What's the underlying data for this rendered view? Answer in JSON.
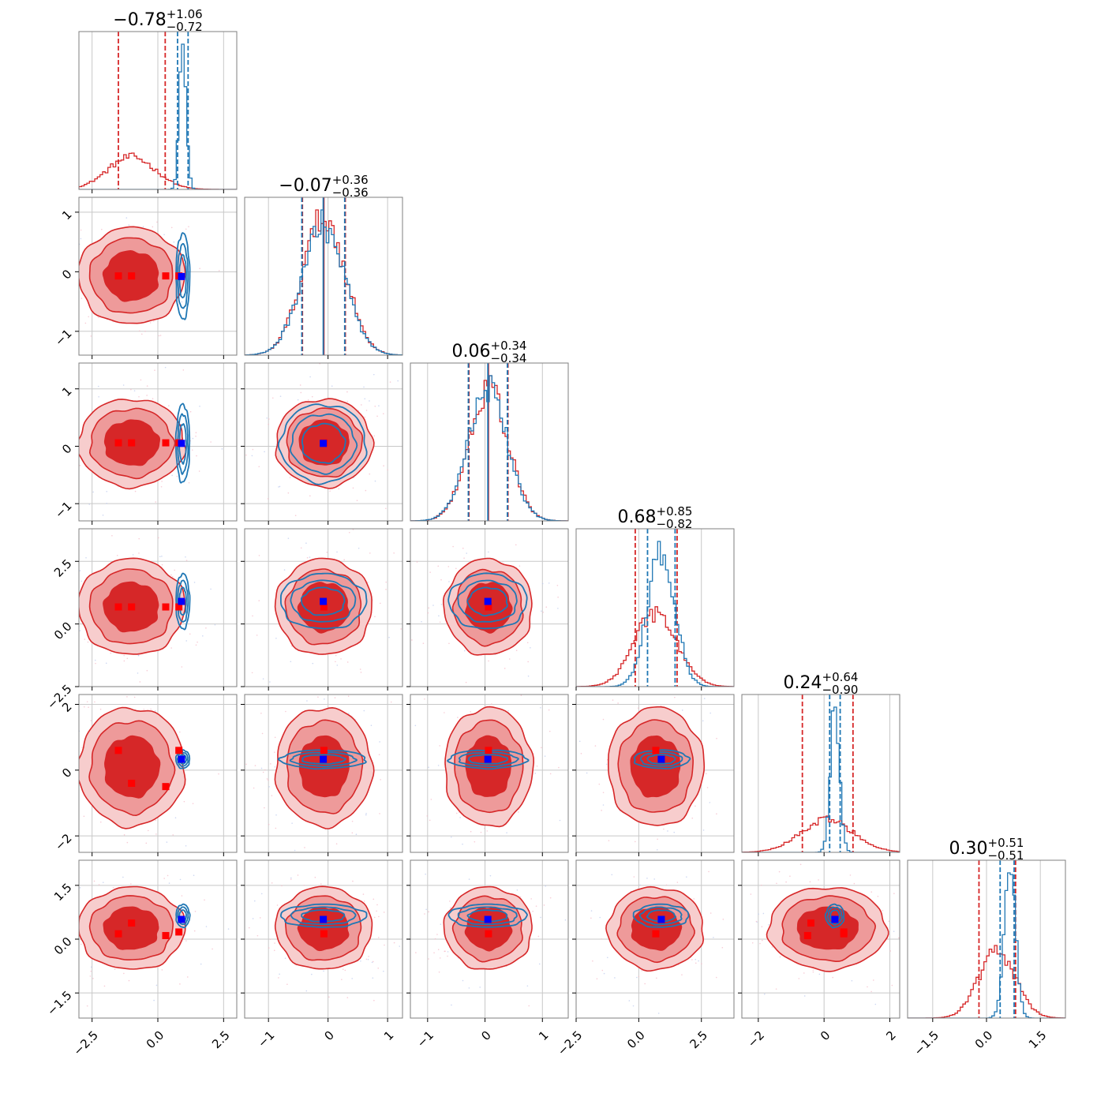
{
  "chart_data": {
    "type": "corner",
    "n_params": 6,
    "params": [
      {
        "titles": {
          "median": "−0.78",
          "plus": "+1.06",
          "minus": "−0.72"
        },
        "range": [
          -3.0,
          3.0
        ],
        "ticks": [
          -2.5,
          0.0,
          2.5
        ],
        "tick_labels": [
          "−2.5",
          "0.0",
          "2.5"
        ],
        "red": {
          "mean": -1.0,
          "sd": 0.9,
          "q16": -1.5,
          "q50": -0.78,
          "q84": 0.28
        },
        "blue": {
          "mean": 0.95,
          "sd": 0.13,
          "q16": 0.75,
          "q50": 0.95,
          "q84": 1.15
        },
        "red_points": [
          -1.5,
          -1.0,
          0.3,
          0.8
        ],
        "blue_point": 0.9
      },
      {
        "titles": {
          "median": "−0.07",
          "plus": "+0.36",
          "minus": "−0.36"
        },
        "range": [
          -1.4,
          1.25
        ],
        "ticks": [
          -1,
          0,
          1
        ],
        "tick_labels": [
          "−1",
          "0",
          "1"
        ],
        "red": {
          "mean": -0.07,
          "sd": 0.36,
          "q16": -0.43,
          "q50": -0.07,
          "q84": 0.29
        },
        "blue": {
          "mean": -0.08,
          "sd": 0.36,
          "q16": -0.44,
          "q50": -0.08,
          "q84": 0.28
        },
        "red_points": [
          -0.07
        ],
        "blue_point": -0.08
      },
      {
        "titles": {
          "median": "0.06",
          "plus": "+0.34",
          "minus": "−0.34"
        },
        "range": [
          -1.3,
          1.45
        ],
        "ticks": [
          -1,
          0,
          1
        ],
        "tick_labels": [
          "−1",
          "0",
          "1"
        ],
        "red": {
          "mean": 0.06,
          "sd": 0.34,
          "q16": -0.28,
          "q50": 0.06,
          "q84": 0.4
        },
        "blue": {
          "mean": 0.05,
          "sd": 0.34,
          "q16": -0.29,
          "q50": 0.05,
          "q84": 0.39
        },
        "red_points": [
          0.06
        ],
        "blue_point": 0.05
      },
      {
        "titles": {
          "median": "0.68",
          "plus": "+0.85",
          "minus": "−0.82"
        },
        "range": [
          -2.5,
          3.8
        ],
        "ticks": [
          -2.5,
          0.0,
          2.5
        ],
        "tick_labels": [
          "−2.5",
          "0.0",
          "2.5"
        ],
        "red": {
          "mean": 0.68,
          "sd": 0.85,
          "q16": -0.14,
          "q50": 0.68,
          "q84": 1.53
        },
        "blue": {
          "mean": 0.9,
          "sd": 0.55,
          "q16": 0.35,
          "q50": 0.9,
          "q84": 1.45
        },
        "red_points": [
          0.68
        ],
        "blue_point": 0.9
      },
      {
        "titles": {
          "median": "0.24",
          "plus": "+0.64",
          "minus": "−0.90"
        },
        "range": [
          -2.5,
          2.3
        ],
        "ticks": [
          -2,
          0,
          2
        ],
        "tick_labels": [
          "−2",
          "0",
          "2"
        ],
        "red": {
          "mean": 0.1,
          "sd": 0.8,
          "q16": -0.66,
          "q50": 0.24,
          "q84": 0.88
        },
        "blue": {
          "mean": 0.33,
          "sd": 0.14,
          "q16": 0.17,
          "q50": 0.33,
          "q84": 0.49
        },
        "red_points": [
          0.6,
          -0.4,
          -0.5,
          0.6
        ],
        "blue_point": 0.33
      },
      {
        "titles": {
          "median": "0.30",
          "plus": "+0.51",
          "minus": "−0.51"
        },
        "range": [
          -2.2,
          2.2
        ],
        "ticks": [
          -1.5,
          0.0,
          1.5
        ],
        "tick_labels": [
          "−1.5",
          "0.0",
          "1.5"
        ],
        "red": {
          "mean": 0.3,
          "sd": 0.51,
          "q16": -0.21,
          "q50": 0.3,
          "q84": 0.81
        },
        "blue": {
          "mean": 0.65,
          "sd": 0.16,
          "q16": 0.38,
          "q50": 0.65,
          "q84": 0.77
        },
        "red_points": [
          0.15,
          0.45,
          0.1,
          0.2
        ],
        "blue_point": 0.55
      }
    ],
    "colors": {
      "red": "#d62728",
      "red_mid": "#ee9a9a",
      "red_light": "#f7cdcd",
      "blue": "#1f77b4",
      "marker_blue": "#0000ff",
      "marker_red": "#ff0000",
      "grid": "#c8c8c8",
      "frame": "#7f7f7f"
    },
    "grid": true
  }
}
